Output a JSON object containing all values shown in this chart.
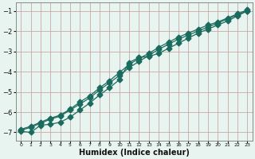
{
  "xlabel": "Humidex (Indice chaleur)",
  "ylabel": "",
  "background_color": "#e8f4f0",
  "grid_color": "#c8a8a8",
  "line_color": "#1a6b5e",
  "xlim": [
    -0.5,
    23.5
  ],
  "ylim": [
    -7.4,
    -0.6
  ],
  "xticks": [
    0,
    1,
    2,
    3,
    4,
    5,
    6,
    7,
    8,
    9,
    10,
    11,
    12,
    13,
    14,
    15,
    16,
    17,
    18,
    19,
    20,
    21,
    22,
    23
  ],
  "yticks": [
    -7,
    -6,
    -5,
    -4,
    -3,
    -2,
    -1
  ],
  "line1_x": [
    0,
    1,
    2,
    3,
    4,
    5,
    6,
    7,
    8,
    9,
    10,
    11,
    12,
    13,
    14,
    15,
    16,
    17,
    18,
    19,
    20,
    21,
    22,
    23
  ],
  "line1_y": [
    -6.9,
    -6.75,
    -6.55,
    -6.35,
    -6.2,
    -5.9,
    -5.6,
    -5.3,
    -4.9,
    -4.55,
    -4.2,
    -3.8,
    -3.5,
    -3.2,
    -2.9,
    -2.65,
    -2.4,
    -2.2,
    -2.0,
    -1.8,
    -1.6,
    -1.4,
    -1.2,
    -1.0
  ],
  "line2_x": [
    0,
    1,
    2,
    3,
    4,
    5,
    6,
    7,
    8,
    9,
    10,
    11,
    12,
    13,
    14,
    15,
    16,
    17,
    18,
    19,
    20,
    21,
    22,
    23
  ],
  "line2_y": [
    -6.95,
    -7.0,
    -6.65,
    -6.6,
    -6.5,
    -6.25,
    -5.9,
    -5.55,
    -5.15,
    -4.8,
    -4.4,
    -3.55,
    -3.3,
    -3.25,
    -3.1,
    -2.85,
    -2.6,
    -2.35,
    -2.1,
    -1.9,
    -1.7,
    -1.5,
    -1.25,
    -1.0
  ],
  "line3_x": [
    0,
    1,
    2,
    3,
    4,
    5,
    6,
    7,
    8,
    9,
    10,
    11,
    12,
    13,
    14,
    15,
    16,
    17,
    18,
    19,
    20,
    21,
    22,
    23
  ],
  "line3_y": [
    -6.85,
    -6.7,
    -6.5,
    -6.3,
    -6.15,
    -5.85,
    -5.5,
    -5.2,
    -4.8,
    -4.45,
    -4.05,
    -3.65,
    -3.35,
    -3.1,
    -2.8,
    -2.55,
    -2.3,
    -2.1,
    -1.9,
    -1.7,
    -1.55,
    -1.35,
    -1.15,
    -0.95
  ]
}
